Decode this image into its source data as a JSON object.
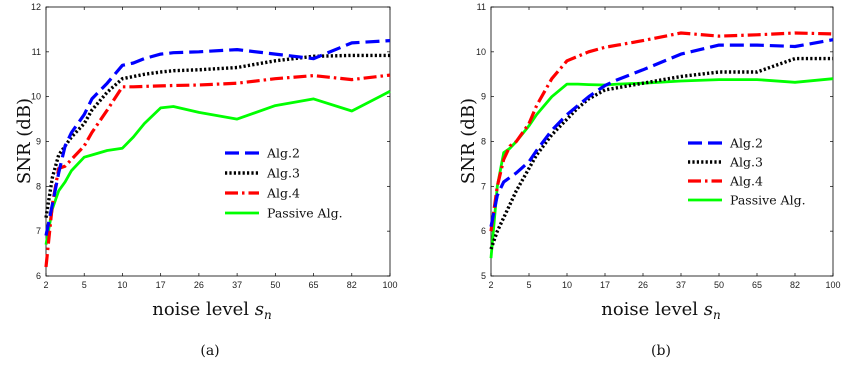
{
  "colors": {
    "alg2": "#0000ff",
    "alg3": "#000000",
    "alg4": "#ff0000",
    "passive": "#00ff00"
  },
  "chart_data": [
    {
      "type": "line",
      "caption": "(a)",
      "xlabel": "noise level",
      "xlabel_sym": "s",
      "xlabel_sub": "n",
      "ylabel": "SNR (dB)",
      "x_ticks": [
        "2",
        "5",
        "10",
        "17",
        "26",
        "37",
        "50",
        "65",
        "82",
        "100"
      ],
      "y_ticks": [
        "6",
        "7",
        "8",
        "9",
        "10",
        "11",
        "12"
      ],
      "ylim": [
        6,
        12
      ],
      "legend_position": "bottom-right",
      "series": [
        {
          "name": "Alg.2",
          "key": "alg2",
          "style": "dashed",
          "x": [
            2,
            2.5,
            3,
            3.5,
            4,
            5,
            6,
            8,
            10,
            12,
            14,
            17,
            20,
            26,
            37,
            50,
            65,
            82,
            100
          ],
          "values": [
            6.9,
            7.6,
            8.3,
            8.9,
            9.2,
            9.6,
            9.95,
            10.3,
            10.7,
            10.75,
            10.85,
            10.95,
            10.98,
            11.0,
            11.05,
            10.95,
            10.85,
            11.2,
            11.25
          ]
        },
        {
          "name": "Alg.3",
          "key": "alg3",
          "style": "dotted",
          "x": [
            2,
            2.5,
            3,
            3.5,
            4,
            5,
            6,
            8,
            10,
            12,
            14,
            17,
            20,
            26,
            37,
            50,
            65,
            82,
            100
          ],
          "values": [
            7.3,
            8.2,
            8.7,
            8.9,
            9.1,
            9.4,
            9.7,
            10.1,
            10.4,
            10.45,
            10.5,
            10.55,
            10.58,
            10.6,
            10.65,
            10.8,
            10.9,
            10.92,
            10.92
          ]
        },
        {
          "name": "Alg.4",
          "key": "alg4",
          "style": "dashdot",
          "x": [
            2,
            2.5,
            3,
            3.5,
            4,
            5,
            6,
            8,
            10,
            12,
            14,
            17,
            20,
            26,
            37,
            50,
            65,
            82,
            100
          ],
          "values": [
            6.2,
            7.6,
            8.4,
            8.45,
            8.6,
            8.9,
            9.2,
            9.7,
            10.22,
            10.22,
            10.23,
            10.24,
            10.25,
            10.26,
            10.3,
            10.4,
            10.47,
            10.38,
            10.48
          ]
        },
        {
          "name": "Passive Alg.",
          "key": "passive",
          "style": "solid",
          "x": [
            2,
            2.5,
            3,
            3.5,
            4,
            5,
            6,
            8,
            10,
            12,
            14,
            17,
            20,
            26,
            37,
            50,
            65,
            82,
            100
          ],
          "values": [
            6.7,
            7.5,
            7.9,
            8.1,
            8.35,
            8.65,
            8.7,
            8.8,
            8.85,
            9.1,
            9.4,
            9.75,
            9.78,
            9.65,
            9.5,
            9.8,
            9.95,
            9.68,
            10.12
          ]
        }
      ]
    },
    {
      "type": "line",
      "caption": "(b)",
      "xlabel": "noise level",
      "xlabel_sym": "s",
      "xlabel_sub": "n",
      "ylabel": "SNR (dB)",
      "x_ticks": [
        "2",
        "5",
        "10",
        "17",
        "26",
        "37",
        "50",
        "65",
        "82",
        "100"
      ],
      "y_ticks": [
        "5",
        "6",
        "7",
        "8",
        "9",
        "10",
        "11"
      ],
      "ylim": [
        5,
        11
      ],
      "legend_position": "bottom-right",
      "series": [
        {
          "name": "Alg.2",
          "key": "alg2",
          "style": "dashed",
          "x": [
            2,
            2.5,
            3,
            3.5,
            4,
            5,
            6,
            8,
            10,
            12,
            14,
            17,
            20,
            26,
            37,
            50,
            65,
            82,
            100
          ],
          "values": [
            6.1,
            6.8,
            7.1,
            7.2,
            7.3,
            7.55,
            7.8,
            8.25,
            8.6,
            8.8,
            9.0,
            9.25,
            9.38,
            9.6,
            9.95,
            10.15,
            10.15,
            10.12,
            10.27
          ]
        },
        {
          "name": "Alg.3",
          "key": "alg3",
          "style": "dotted",
          "x": [
            2,
            2.5,
            3,
            3.5,
            4,
            5,
            6,
            8,
            10,
            12,
            14,
            17,
            20,
            26,
            37,
            50,
            65,
            82,
            100
          ],
          "values": [
            5.6,
            6.0,
            6.3,
            6.6,
            6.9,
            7.4,
            7.7,
            8.15,
            8.5,
            8.75,
            8.95,
            9.15,
            9.2,
            9.3,
            9.45,
            9.55,
            9.55,
            9.85,
            9.85
          ]
        },
        {
          "name": "Alg.4",
          "key": "alg4",
          "style": "dashdot",
          "x": [
            2,
            2.5,
            3,
            3.5,
            4,
            5,
            6,
            8,
            10,
            12,
            14,
            17,
            20,
            26,
            37,
            50,
            65,
            82,
            100
          ],
          "values": [
            6.0,
            7.0,
            7.6,
            7.9,
            8.0,
            8.4,
            8.8,
            9.4,
            9.8,
            9.9,
            10.0,
            10.1,
            10.15,
            10.25,
            10.42,
            10.35,
            10.38,
            10.42,
            10.4
          ]
        },
        {
          "name": "Passive Alg.",
          "key": "passive",
          "style": "solid",
          "x": [
            2,
            2.5,
            3,
            3.5,
            4,
            5,
            6,
            8,
            10,
            12,
            14,
            17,
            20,
            26,
            37,
            50,
            65,
            82,
            100
          ],
          "values": [
            5.4,
            7.0,
            7.75,
            7.85,
            8.0,
            8.35,
            8.6,
            9.0,
            9.28,
            9.28,
            9.27,
            9.26,
            9.28,
            9.3,
            9.35,
            9.38,
            9.38,
            9.32,
            9.4
          ]
        }
      ]
    }
  ]
}
